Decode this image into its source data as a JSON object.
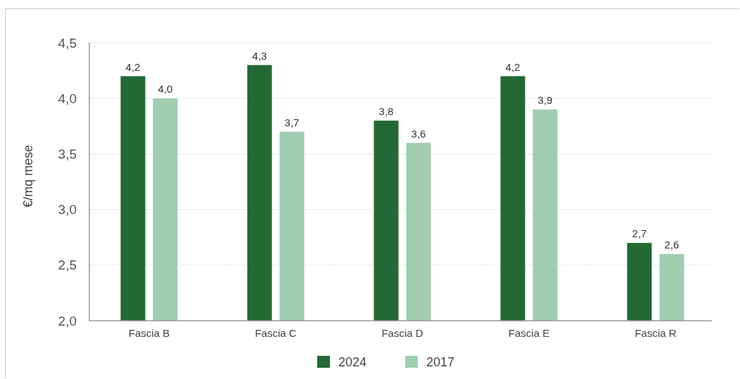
{
  "chart_data": {
    "type": "bar",
    "ylabel": "€/mq mese",
    "categories": [
      "Fascia B",
      "Fascia C",
      "Fascia D",
      "Fascia E",
      "Fascia R"
    ],
    "series": [
      {
        "name": "2024",
        "color": "#236934",
        "values": [
          4.2,
          4.3,
          3.8,
          4.2,
          2.7
        ],
        "value_labels": [
          "4,2",
          "4,3",
          "3,8",
          "4,2",
          "2,7"
        ]
      },
      {
        "name": "2017",
        "color": "#a0cdaf",
        "values": [
          4.0,
          3.7,
          3.6,
          3.9,
          2.6
        ],
        "value_labels": [
          "4,0",
          "3,7",
          "3,6",
          "3,9",
          "2,6"
        ]
      }
    ],
    "ylim": [
      2.0,
      4.5
    ],
    "yticks": [
      {
        "value": 2.0,
        "label": "2,0"
      },
      {
        "value": 2.5,
        "label": "2,5"
      },
      {
        "value": 3.0,
        "label": "3,0"
      },
      {
        "value": 3.5,
        "label": "3,5"
      },
      {
        "value": 4.0,
        "label": "4,0"
      },
      {
        "value": 4.5,
        "label": "4,5"
      }
    ],
    "grid": "y",
    "legend": "bottom"
  }
}
